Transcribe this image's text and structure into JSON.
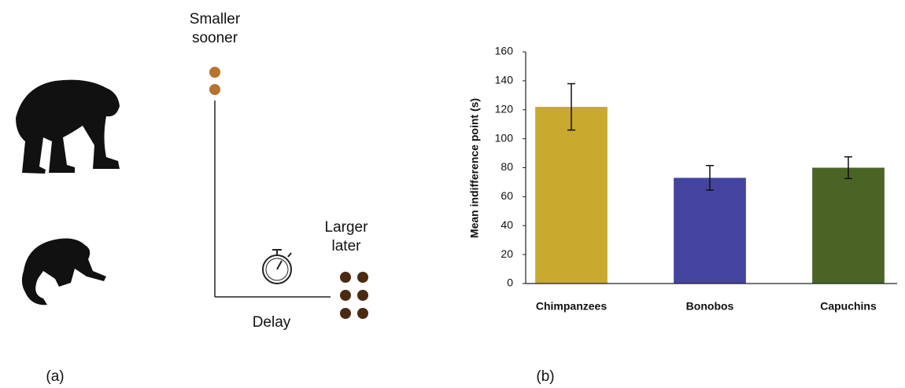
{
  "panel_a": {
    "label": "(a)",
    "smaller_sooner": [
      "Smaller",
      "sooner"
    ],
    "larger_later": [
      "Larger",
      "later"
    ],
    "delay": "Delay"
  },
  "chart_data": {
    "type": "bar",
    "panel_label": "(b)",
    "y_label": "Mean indifference point (s)",
    "categories": [
      "Chimpanzees",
      "Bonobos",
      "Capuchins"
    ],
    "values": [
      122,
      73,
      80
    ],
    "errors": [
      16,
      8.5,
      7.5
    ],
    "colors": [
      "#c9a92e",
      "#4444a0",
      "#4a6425"
    ],
    "ylim": [
      0,
      160
    ],
    "yticks": [
      0,
      20,
      40,
      60,
      80,
      100,
      120,
      140,
      160
    ],
    "grid": false
  }
}
